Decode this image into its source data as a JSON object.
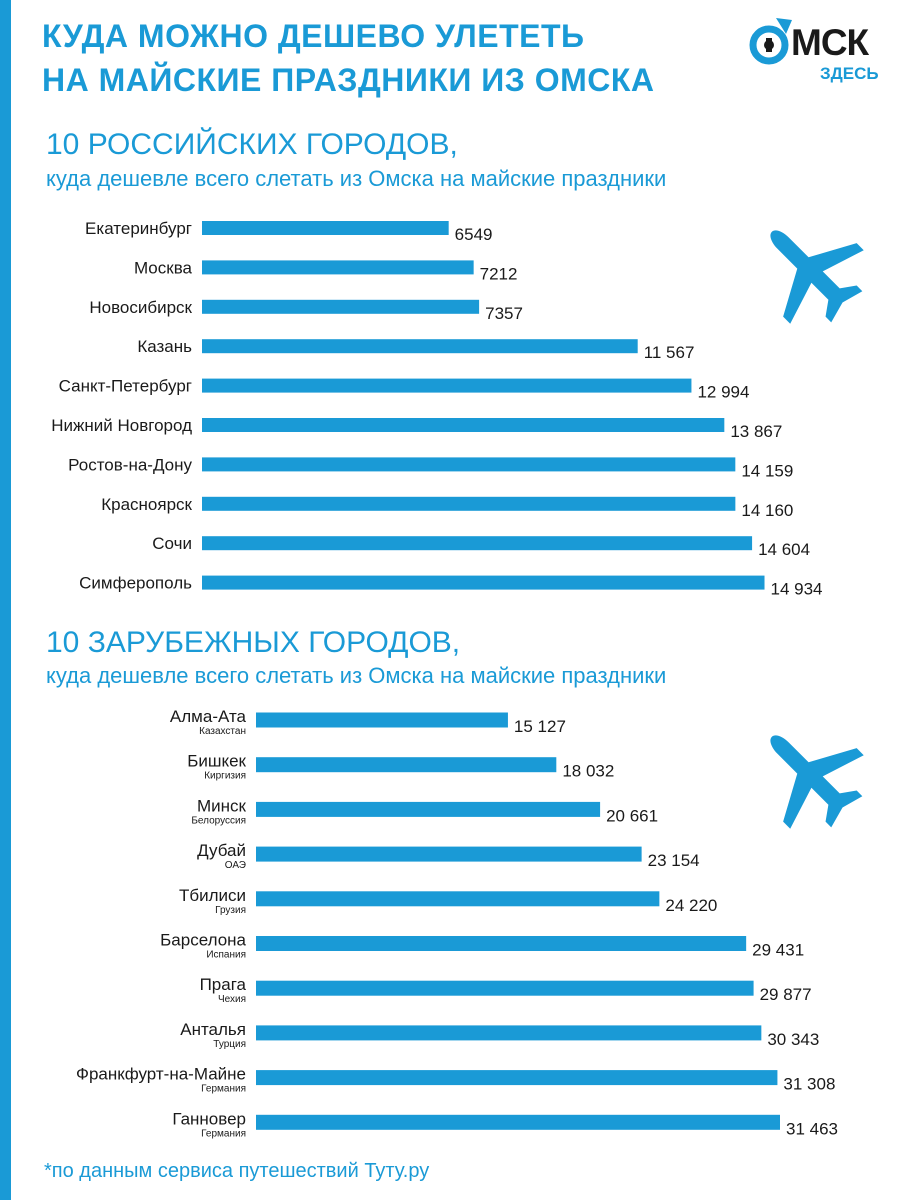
{
  "header": {
    "title_line1": "КУДА МОЖНО ДЕШЕВО УЛЕТЕТЬ",
    "title_line2": "НА МАЙСКИЕ ПРАЗДНИКИ ИЗ ОМСКА"
  },
  "logo": {
    "text": "МСК",
    "subtext": "ЗДЕСЬ",
    "icon": "omsk-circle-arrow-icon"
  },
  "colors": {
    "accent": "#1a9ad6",
    "text": "#1a1a1a"
  },
  "chart_data": [
    {
      "type": "bar",
      "orientation": "horizontal",
      "title": "10 РОССИЙСКИХ ГОРОДОВ,",
      "subtitle": "куда дешевле всего слетать из Омска на майские праздники",
      "categories": [
        "Екатеринбург",
        "Москва",
        "Новосибирск",
        "Казань",
        "Санкт-Петербург",
        "Нижний Новгород",
        "Ростов-на-Дону",
        "Красноярск",
        "Сочи",
        "Симферополь"
      ],
      "values": [
        6549,
        7212,
        7357,
        11567,
        12994,
        13867,
        14159,
        14160,
        14604,
        14934
      ],
      "value_labels": [
        "6549",
        "7212",
        "7357",
        "11 567",
        "12 994",
        "13 867",
        "14 159",
        "14 160",
        "14 604",
        "14 934"
      ],
      "xlim": [
        0,
        15000
      ],
      "grid": false
    },
    {
      "type": "bar",
      "orientation": "horizontal",
      "title": "10 ЗАРУБЕЖНЫХ ГОРОДОВ,",
      "subtitle": "куда дешевле всего слетать из Омска на майские праздники",
      "categories": [
        "Алма-Ата",
        "Бишкек",
        "Минск",
        "Дубай",
        "Тбилиси",
        "Барселона",
        "Прага",
        "Анталья",
        "Франкфурт-на-Майне",
        "Ганновер"
      ],
      "sublabels": [
        "Казахстан",
        "Киргизия",
        "Белоруссия",
        "ОАЭ",
        "Грузия",
        "Испания",
        "Чехия",
        "Турция",
        "Германия",
        "Германия"
      ],
      "values": [
        15127,
        18032,
        20661,
        23154,
        24220,
        29431,
        29877,
        30343,
        31308,
        31463
      ],
      "value_labels": [
        "15 127",
        "18 032",
        "20 661",
        "23 154",
        "24 220",
        "29 431",
        "29 877",
        "30 343",
        "31 308",
        "31 463"
      ],
      "xlim": [
        0,
        31463
      ],
      "grid": false
    }
  ],
  "icons": [
    "airplane-icon",
    "airplane-icon"
  ],
  "footnote": "*по данным сервиса путешествий Туту.ру"
}
